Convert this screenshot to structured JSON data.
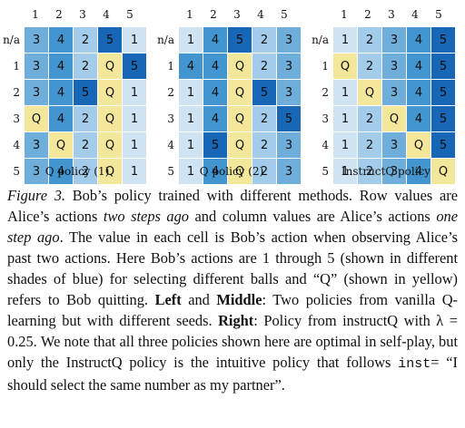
{
  "figure": {
    "panels": [
      {
        "title": "Q policy (1)",
        "col_labels": [
          "1",
          "2",
          "3",
          "4",
          "5"
        ],
        "rows": [
          {
            "label": "n/a",
            "cells": [
              "3",
              "4",
              "2",
              "5",
              "1"
            ]
          },
          {
            "label": "1",
            "cells": [
              "3",
              "4",
              "2",
              "Q",
              "5"
            ]
          },
          {
            "label": "2",
            "cells": [
              "3",
              "4",
              "5",
              "Q",
              "1"
            ]
          },
          {
            "label": "3",
            "cells": [
              "Q",
              "4",
              "2",
              "Q",
              "1"
            ]
          },
          {
            "label": "4",
            "cells": [
              "3",
              "Q",
              "2",
              "Q",
              "1"
            ]
          },
          {
            "label": "5",
            "cells": [
              "3",
              "4",
              "2",
              "Q",
              "1"
            ]
          }
        ]
      },
      {
        "title": "Q policy (2)",
        "col_labels": [
          "1",
          "2",
          "3",
          "4",
          "5"
        ],
        "rows": [
          {
            "label": "n/a",
            "cells": [
              "1",
              "4",
              "5",
              "2",
              "3"
            ]
          },
          {
            "label": "1",
            "cells": [
              "4",
              "4",
              "Q",
              "2",
              "3"
            ]
          },
          {
            "label": "2",
            "cells": [
              "1",
              "4",
              "Q",
              "5",
              "3"
            ]
          },
          {
            "label": "3",
            "cells": [
              "1",
              "4",
              "Q",
              "2",
              "5"
            ]
          },
          {
            "label": "4",
            "cells": [
              "1",
              "5",
              "Q",
              "2",
              "3"
            ]
          },
          {
            "label": "5",
            "cells": [
              "1",
              "4",
              "Q",
              "2",
              "3"
            ]
          }
        ]
      },
      {
        "title": "InstructQ policy",
        "col_labels": [
          "1",
          "2",
          "3",
          "4",
          "5"
        ],
        "rows": [
          {
            "label": "n/a",
            "cells": [
              "1",
              "2",
              "3",
              "4",
              "5"
            ]
          },
          {
            "label": "1",
            "cells": [
              "Q",
              "2",
              "3",
              "4",
              "5"
            ]
          },
          {
            "label": "2",
            "cells": [
              "1",
              "Q",
              "3",
              "4",
              "5"
            ]
          },
          {
            "label": "3",
            "cells": [
              "1",
              "2",
              "Q",
              "4",
              "5"
            ]
          },
          {
            "label": "4",
            "cells": [
              "1",
              "2",
              "3",
              "Q",
              "5"
            ]
          },
          {
            "label": "5",
            "cells": [
              "1",
              "2",
              "3",
              "4",
              "Q"
            ]
          }
        ]
      }
    ],
    "cell_colors": {
      "1": "#cfe3f3",
      "2": "#a3cbea",
      "3": "#6faedb",
      "4": "#4295cf",
      "5": "#1867b7",
      "Q": "#f3e79c"
    }
  },
  "caption": {
    "label": "Figure 3.",
    "s1": " Bob’s policy trained with different methods. Row values are Alice’s actions ",
    "em1": "two steps ago",
    "s2": " and column values are Alice’s actions ",
    "em2": "one step ago",
    "s3": ". The value in each cell is Bob’s action when observing Alice’s past two actions.  Here Bob’s actions are 1 through 5 (shown in different shades of blue) for selecting different balls and “Q” (shown in yellow) refers to Bob quitting. ",
    "b1": "Left",
    "s4": " and ",
    "b2": "Middle",
    "s5": ": Two policies from vanilla Q-learning but with different seeds. ",
    "b3": "Right",
    "s6": ": Policy from instructQ with λ = 0.25. We note that all three policies shown here are optimal in self-play, but only the InstructQ policy is the intuitive policy that follows ",
    "code": "inst",
    "s7": "= “I should select the same number as my partner”."
  }
}
